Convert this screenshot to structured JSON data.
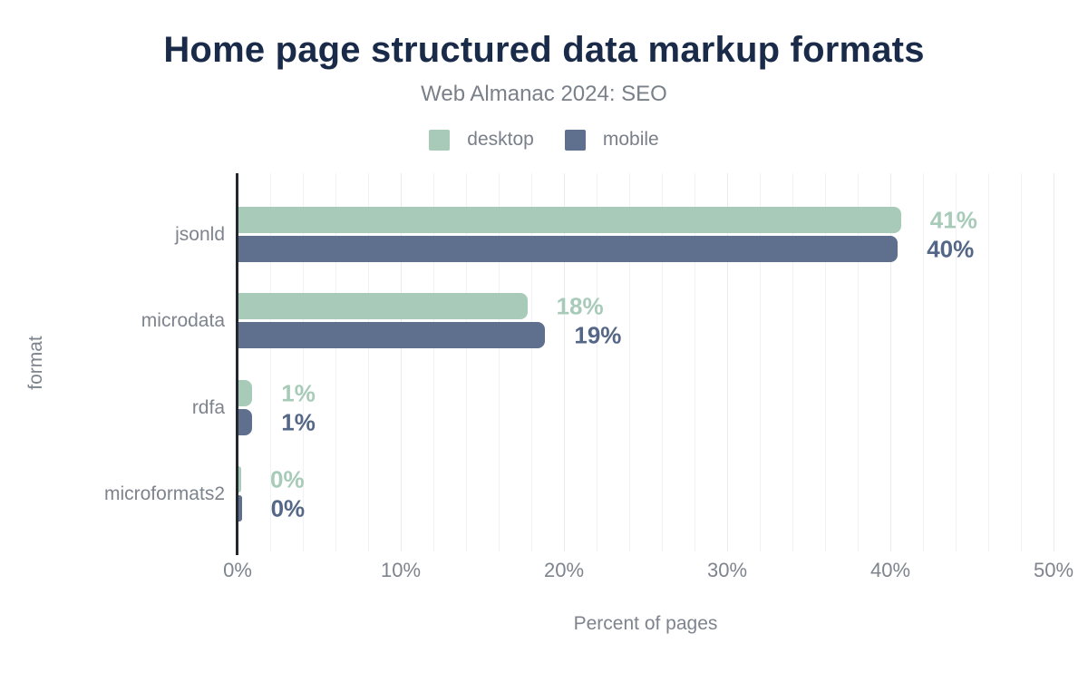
{
  "title": "Home page structured data markup formats",
  "subtitle": "Web Almanac 2024: SEO",
  "axes": {
    "x_title": "Percent of pages",
    "y_title": "format"
  },
  "legend": {
    "items": [
      {
        "label": "desktop",
        "series": "desktop"
      },
      {
        "label": "mobile",
        "series": "mobile"
      }
    ]
  },
  "colors": {
    "title": "#1a2b49",
    "muted_text": "#7a8089",
    "desktop": "#a8cbb9",
    "mobile": "#5f708e",
    "desktop_label": "#a8cbb9",
    "mobile_label": "#556787",
    "gridline_minor": "#f1f2f4",
    "gridline_major": "#e9ebee",
    "axis_line": "#24282d"
  },
  "chart_data": {
    "type": "bar",
    "orientation": "horizontal",
    "title": "Home page structured data markup formats",
    "subtitle": "Web Almanac 2024: SEO",
    "categories": [
      "jsonld",
      "microdata",
      "rdfa",
      "microformats2"
    ],
    "series": [
      {
        "name": "desktop",
        "color": "#a8cbb9",
        "label_color": "#a8cbb9",
        "values": [
          40.6,
          17.7,
          0.85,
          0.15
        ],
        "labels": [
          "41%",
          "18%",
          "1%",
          "0%"
        ]
      },
      {
        "name": "mobile",
        "color": "#5f708e",
        "label_color": "#556787",
        "values": [
          40.4,
          18.8,
          0.85,
          0.2
        ],
        "labels": [
          "40%",
          "19%",
          "1%",
          "0%"
        ]
      }
    ],
    "xlabel": "Percent of pages",
    "ylabel": "format",
    "xlim": [
      0,
      51.3
    ],
    "xtick_labels": [
      "0%",
      "10%",
      "20%",
      "30%",
      "40%",
      "50%"
    ],
    "xtick_values": [
      0,
      10,
      20,
      30,
      40,
      50
    ],
    "grid_step_pct": 2,
    "grid": true,
    "legend_position": "top",
    "value_labels_shown": true
  }
}
